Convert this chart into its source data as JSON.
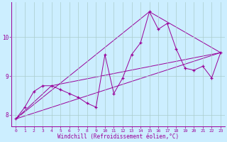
{
  "xlabel": "Windchill (Refroidissement éolien,°C)",
  "bg_color": "#cceeff",
  "grid_color": "#aacccc",
  "line_color": "#990099",
  "xlim": [
    -0.5,
    23.5
  ],
  "ylim": [
    7.7,
    10.9
  ],
  "xticks": [
    0,
    1,
    2,
    3,
    4,
    5,
    6,
    7,
    8,
    9,
    10,
    11,
    12,
    13,
    14,
    15,
    16,
    17,
    18,
    19,
    20,
    21,
    22,
    23
  ],
  "yticks": [
    8,
    9,
    10
  ],
  "series1_x": [
    0,
    1,
    2,
    3,
    4,
    5,
    6,
    7,
    8,
    9,
    10,
    11,
    12,
    13,
    14,
    15,
    16,
    17,
    18,
    19,
    20,
    21,
    22,
    23
  ],
  "series1_y": [
    7.9,
    8.2,
    8.6,
    8.75,
    8.75,
    8.65,
    8.55,
    8.45,
    8.3,
    8.2,
    9.55,
    8.55,
    8.95,
    9.55,
    9.85,
    10.65,
    10.2,
    10.35,
    9.7,
    9.2,
    9.15,
    9.25,
    8.95,
    9.6
  ],
  "series2_x": [
    0,
    23
  ],
  "series2_y": [
    7.9,
    9.6
  ],
  "series3_x": [
    0,
    4,
    23
  ],
  "series3_y": [
    7.9,
    8.75,
    9.6
  ],
  "series4_x": [
    0,
    15,
    23
  ],
  "series4_y": [
    7.9,
    10.65,
    9.6
  ]
}
